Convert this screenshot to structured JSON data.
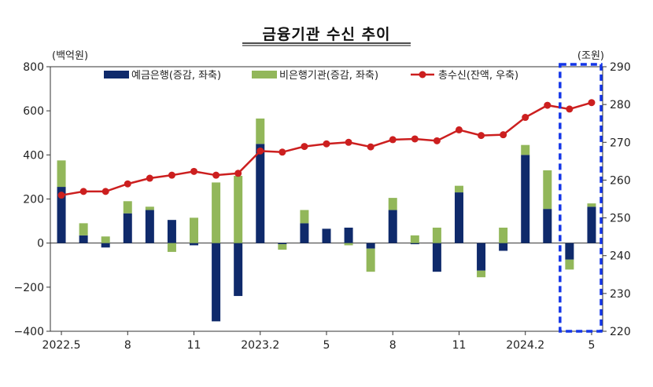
{
  "chart_data": {
    "type": "bar",
    "title": "금융기관 수신 추이",
    "left_unit": "(백억원)",
    "right_unit": "(조원)",
    "x_tick_labels": [
      "2022.5",
      "8",
      "11",
      "2023.2",
      "5",
      "8",
      "11",
      "2024.2",
      "5"
    ],
    "x_tick_positions": [
      0,
      3,
      6,
      9,
      12,
      15,
      18,
      21,
      24
    ],
    "categories": [
      "2022.5",
      "2022.6",
      "2022.7",
      "2022.8",
      "2022.9",
      "2022.10",
      "2022.11",
      "2022.12",
      "2023.1",
      "2023.2",
      "2023.3",
      "2023.4",
      "2023.5",
      "2023.6",
      "2023.7",
      "2023.8",
      "2023.9",
      "2023.10",
      "2023.11",
      "2023.12",
      "2024.1",
      "2024.2",
      "2024.3",
      "2024.4",
      "2024.5"
    ],
    "ylim_left": [
      -400,
      800
    ],
    "yticks_left": [
      -400,
      -200,
      0,
      200,
      400,
      600,
      800
    ],
    "ylim_right": [
      220,
      290
    ],
    "yticks_right": [
      220,
      230,
      240,
      250,
      260,
      270,
      280,
      290
    ],
    "series": [
      {
        "name": "예금은행(증감, 좌축)",
        "kind": "bar",
        "axis": "left",
        "color": "#0f2a6b",
        "values": [
          255,
          35,
          -20,
          135,
          150,
          105,
          -10,
          -355,
          -240,
          450,
          -5,
          90,
          65,
          70,
          -25,
          150,
          -5,
          -130,
          230,
          -125,
          -35,
          400,
          155,
          -75,
          165
        ]
      },
      {
        "name": "비은행기관(증감, 좌축)",
        "kind": "bar",
        "axis": "left",
        "color": "#92b75a",
        "values": [
          120,
          55,
          30,
          55,
          15,
          -40,
          115,
          275,
          305,
          115,
          -25,
          60,
          0,
          -10,
          -105,
          55,
          35,
          70,
          30,
          -30,
          70,
          45,
          175,
          -45,
          15
        ]
      },
      {
        "name": "총수신(잔액, 우축)",
        "kind": "line",
        "axis": "right",
        "color": "#cc1f1f",
        "values": [
          256.0,
          257.0,
          257.0,
          259.0,
          260.5,
          261.3,
          262.3,
          261.3,
          261.8,
          267.7,
          267.4,
          268.9,
          269.6,
          270.0,
          268.8,
          270.7,
          270.9,
          270.4,
          273.3,
          271.8,
          272.0,
          276.6,
          279.8,
          278.8,
          280.5
        ]
      }
    ],
    "legend_position": "top",
    "highlight": {
      "start_index": 23,
      "end_index": 24,
      "style": "dashed-box",
      "color": "#1436e8"
    },
    "grid": false
  }
}
